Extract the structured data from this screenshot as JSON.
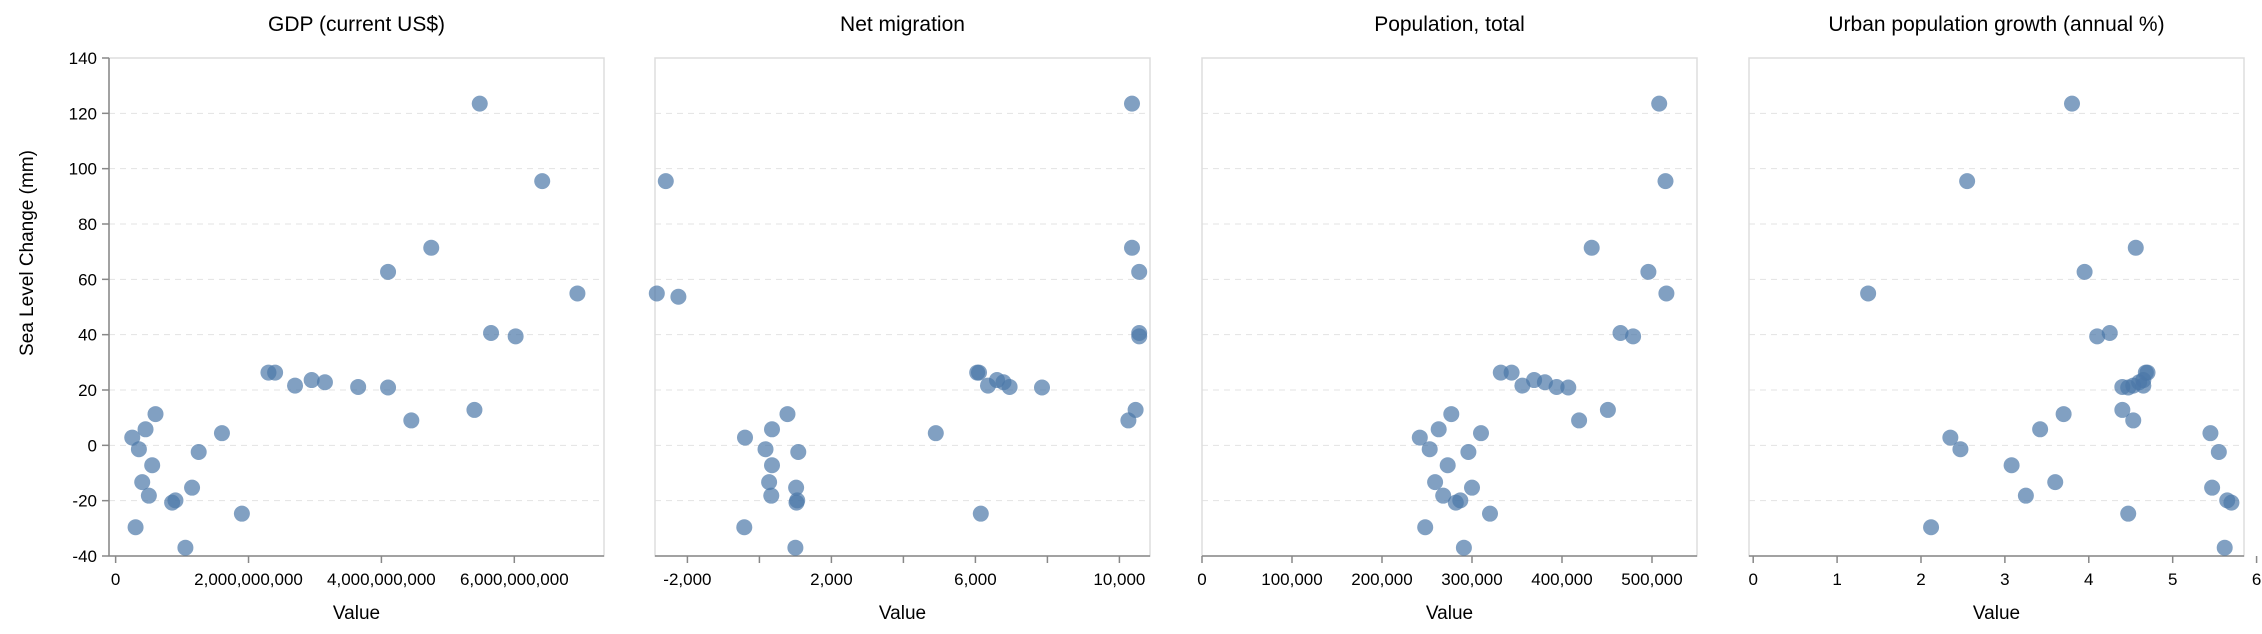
{
  "y_axis_title": "Sea Level Change (mm)",
  "x_axis_title": "Value",
  "colors": {
    "point": "#4c78a8",
    "grid": "#e3e3e3",
    "frame": "#dddddd"
  },
  "chart_data": [
    {
      "type": "scatter",
      "title": "GDP (current US$)",
      "xlabel": "Value",
      "ylabel": "Sea Level Change (mm)",
      "xlim": [
        -100000000,
        7350000000
      ],
      "ylim": [
        -40,
        140
      ],
      "xticks": [
        0,
        2000000000,
        4000000000,
        6000000000
      ],
      "xtick_labels": [
        "0",
        "2,000,000,000",
        "4,000,000,000",
        "6,000,000,000"
      ],
      "yticks": [
        -40,
        -20,
        0,
        20,
        40,
        60,
        80,
        100,
        120,
        140
      ],
      "grid": true,
      "points": [
        {
          "x": 250000000,
          "y": 2.8
        },
        {
          "x": 300000000,
          "y": -29.6
        },
        {
          "x": 350000000,
          "y": -1.4
        },
        {
          "x": 400000000,
          "y": -13.3
        },
        {
          "x": 450000000,
          "y": 5.8
        },
        {
          "x": 500000000,
          "y": -18.2
        },
        {
          "x": 550000000,
          "y": -7.2
        },
        {
          "x": 600000000,
          "y": 11.3
        },
        {
          "x": 850000000,
          "y": -20.7
        },
        {
          "x": 900000000,
          "y": -19.9
        },
        {
          "x": 1050000000,
          "y": -37.0
        },
        {
          "x": 1150000000,
          "y": -15.3
        },
        {
          "x": 1250000000,
          "y": -2.4
        },
        {
          "x": 1600000000,
          "y": 4.4
        },
        {
          "x": 1900000000,
          "y": -24.7
        },
        {
          "x": 2300000000,
          "y": 26.3
        },
        {
          "x": 2400000000,
          "y": 26.3
        },
        {
          "x": 2700000000,
          "y": 21.6
        },
        {
          "x": 2950000000,
          "y": 23.6
        },
        {
          "x": 3150000000,
          "y": 22.8
        },
        {
          "x": 3650000000,
          "y": 21.1
        },
        {
          "x": 4100000000,
          "y": 20.9
        },
        {
          "x": 4100000000,
          "y": 62.7
        },
        {
          "x": 4450000000,
          "y": 9.0
        },
        {
          "x": 4750000000,
          "y": 71.4
        },
        {
          "x": 5400000000,
          "y": 12.8
        },
        {
          "x": 5480000000,
          "y": 123.5
        },
        {
          "x": 5650000000,
          "y": 40.6
        },
        {
          "x": 6020000000,
          "y": 39.4
        },
        {
          "x": 6420000000,
          "y": 95.5
        },
        {
          "x": 6950000000,
          "y": 54.9
        }
      ]
    },
    {
      "type": "scatter",
      "title": "Net migration",
      "xlabel": "Value",
      "ylabel": "",
      "xlim": [
        -2900,
        10850
      ],
      "ylim": [
        -40,
        140
      ],
      "xticks": [
        -2000,
        0,
        2000,
        4000,
        6000,
        8000,
        10000
      ],
      "xtick_labels": [
        "-2,000",
        "",
        "2,000",
        "",
        "6,000",
        "",
        "10,000"
      ],
      "yticks": [
        -40,
        -20,
        0,
        20,
        40,
        60,
        80,
        100,
        120,
        140
      ],
      "grid": true,
      "points": [
        {
          "x": -2850,
          "y": 54.9
        },
        {
          "x": -2600,
          "y": 95.5
        },
        {
          "x": -2250,
          "y": 53.7
        },
        {
          "x": -400,
          "y": 2.8
        },
        {
          "x": -420,
          "y": -29.6
        },
        {
          "x": 170,
          "y": -1.4
        },
        {
          "x": 270,
          "y": -13.3
        },
        {
          "x": 350,
          "y": 5.8
        },
        {
          "x": 330,
          "y": -18.2
        },
        {
          "x": 350,
          "y": -7.2
        },
        {
          "x": 780,
          "y": 11.3
        },
        {
          "x": 1030,
          "y": -20.7
        },
        {
          "x": 1050,
          "y": -19.9
        },
        {
          "x": 1000,
          "y": -37.0
        },
        {
          "x": 1020,
          "y": -15.3
        },
        {
          "x": 1080,
          "y": -2.4
        },
        {
          "x": 4900,
          "y": 4.4
        },
        {
          "x": 6150,
          "y": -24.7
        },
        {
          "x": 6050,
          "y": 26.3
        },
        {
          "x": 6100,
          "y": 26.3
        },
        {
          "x": 6350,
          "y": 21.6
        },
        {
          "x": 6600,
          "y": 23.6
        },
        {
          "x": 6780,
          "y": 22.8
        },
        {
          "x": 6950,
          "y": 21.1
        },
        {
          "x": 7850,
          "y": 20.9
        },
        {
          "x": 10250,
          "y": 9.0
        },
        {
          "x": 10350,
          "y": 123.5
        },
        {
          "x": 10350,
          "y": 71.4
        },
        {
          "x": 10450,
          "y": 12.8
        },
        {
          "x": 10550,
          "y": 62.7
        },
        {
          "x": 10550,
          "y": 40.6
        },
        {
          "x": 10550,
          "y": 39.4
        }
      ]
    },
    {
      "type": "scatter",
      "title": "Population, total",
      "xlabel": "Value",
      "ylabel": "",
      "xlim": [
        0,
        550000
      ],
      "ylim": [
        -40,
        140
      ],
      "xticks": [
        0,
        100000,
        200000,
        300000,
        400000,
        500000
      ],
      "xtick_labels": [
        "0",
        "100,000",
        "200,000",
        "300,000",
        "400,000",
        "500,000"
      ],
      "yticks": [
        -40,
        -20,
        0,
        20,
        40,
        60,
        80,
        100,
        120,
        140
      ],
      "grid": true,
      "points": [
        {
          "x": 242000,
          "y": 2.8
        },
        {
          "x": 248000,
          "y": -29.6
        },
        {
          "x": 253000,
          "y": -1.4
        },
        {
          "x": 259000,
          "y": -13.3
        },
        {
          "x": 263000,
          "y": 5.8
        },
        {
          "x": 268000,
          "y": -18.2
        },
        {
          "x": 273000,
          "y": -7.2
        },
        {
          "x": 277000,
          "y": 11.3
        },
        {
          "x": 282000,
          "y": -20.7
        },
        {
          "x": 287000,
          "y": -19.9
        },
        {
          "x": 291000,
          "y": -37.0
        },
        {
          "x": 300000,
          "y": -15.3
        },
        {
          "x": 296000,
          "y": -2.4
        },
        {
          "x": 310000,
          "y": 4.4
        },
        {
          "x": 320000,
          "y": -24.7
        },
        {
          "x": 332000,
          "y": 26.3
        },
        {
          "x": 344000,
          "y": 26.3
        },
        {
          "x": 356000,
          "y": 21.6
        },
        {
          "x": 369000,
          "y": 23.6
        },
        {
          "x": 381000,
          "y": 22.8
        },
        {
          "x": 394000,
          "y": 21.1
        },
        {
          "x": 407000,
          "y": 20.9
        },
        {
          "x": 419000,
          "y": 9.0
        },
        {
          "x": 433000,
          "y": 71.4
        },
        {
          "x": 451000,
          "y": 12.8
        },
        {
          "x": 465000,
          "y": 40.6
        },
        {
          "x": 479000,
          "y": 39.4
        },
        {
          "x": 496000,
          "y": 62.7
        },
        {
          "x": 508000,
          "y": 123.5
        },
        {
          "x": 515000,
          "y": 95.5
        },
        {
          "x": 516000,
          "y": 54.9
        }
      ]
    },
    {
      "type": "scatter",
      "title": "Urban population growth (annual %)",
      "xlabel": "Value",
      "ylabel": "",
      "xlim": [
        -0.05,
        5.85
      ],
      "ylim": [
        -40,
        140
      ],
      "xticks": [
        0,
        1,
        2,
        3,
        4,
        5,
        6
      ],
      "xtick_labels": [
        "0",
        "1",
        "2",
        "3",
        "4",
        "5",
        "6"
      ],
      "yticks": [
        -40,
        -20,
        0,
        20,
        40,
        60,
        80,
        100,
        120,
        140
      ],
      "grid": true,
      "points": [
        {
          "x": 1.37,
          "y": 54.9
        },
        {
          "x": 2.12,
          "y": -29.6
        },
        {
          "x": 2.35,
          "y": 2.8
        },
        {
          "x": 2.47,
          "y": -1.4
        },
        {
          "x": 2.55,
          "y": 95.5
        },
        {
          "x": 3.08,
          "y": -7.2
        },
        {
          "x": 3.25,
          "y": -18.2
        },
        {
          "x": 3.42,
          "y": 5.8
        },
        {
          "x": 3.6,
          "y": -13.3
        },
        {
          "x": 3.7,
          "y": 11.3
        },
        {
          "x": 3.8,
          "y": 123.5
        },
        {
          "x": 3.95,
          "y": 62.7
        },
        {
          "x": 4.1,
          "y": 39.4
        },
        {
          "x": 4.25,
          "y": 40.6
        },
        {
          "x": 4.4,
          "y": 12.8
        },
        {
          "x": 4.4,
          "y": 21.1
        },
        {
          "x": 4.47,
          "y": 20.9
        },
        {
          "x": 4.47,
          "y": -24.7
        },
        {
          "x": 4.53,
          "y": 9.0
        },
        {
          "x": 4.53,
          "y": 21.6
        },
        {
          "x": 4.56,
          "y": 71.4
        },
        {
          "x": 4.6,
          "y": 22.8
        },
        {
          "x": 4.65,
          "y": 23.6
        },
        {
          "x": 4.65,
          "y": 21.6
        },
        {
          "x": 4.68,
          "y": 26.3
        },
        {
          "x": 4.7,
          "y": 26.3
        },
        {
          "x": 5.45,
          "y": 4.4
        },
        {
          "x": 5.47,
          "y": -15.3
        },
        {
          "x": 5.55,
          "y": -2.4
        },
        {
          "x": 5.65,
          "y": -19.9
        },
        {
          "x": 5.62,
          "y": -37.0
        },
        {
          "x": 5.7,
          "y": -20.7
        }
      ]
    }
  ]
}
